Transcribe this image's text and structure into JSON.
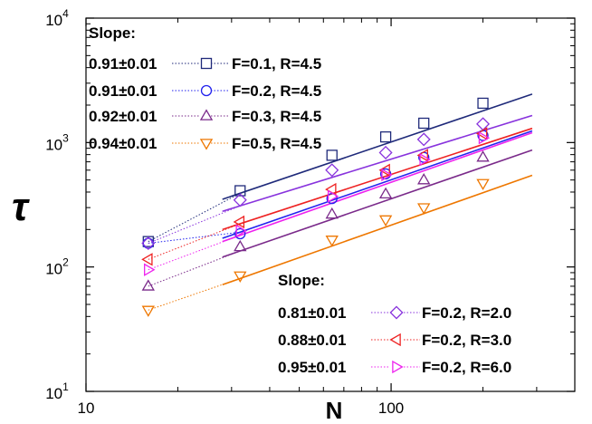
{
  "chart_data": {
    "type": "scatter",
    "title": "",
    "xlabel": "N",
    "ylabel": "τ",
    "xscale": "log",
    "yscale": "log",
    "xlim": [
      10,
      400
    ],
    "ylim": [
      10,
      10000
    ],
    "x_ticks": [
      {
        "value": 10,
        "label": "10"
      },
      {
        "value": 100,
        "label": "100"
      }
    ],
    "y_ticks": [
      {
        "value": 10,
        "base": "10",
        "exp": "1"
      },
      {
        "value": 100,
        "base": "10",
        "exp": "2"
      },
      {
        "value": 1000,
        "base": "10",
        "exp": "3"
      },
      {
        "value": 10000,
        "base": "10",
        "exp": "4"
      }
    ],
    "legend_groups": [
      {
        "title": "Slope:",
        "placement": "top-left"
      },
      {
        "title": "Slope:",
        "placement": "bottom-right"
      }
    ],
    "series": [
      {
        "name": "F=0.1, R=4.5",
        "slope": "0.91±0.01",
        "group": 0,
        "marker": "square",
        "color": "#1f2a7a",
        "x": [
          16,
          32,
          64,
          96,
          128,
          200
        ],
        "y": [
          160,
          410,
          790,
          1110,
          1430,
          2070
        ],
        "fit": [
          [
            28,
            350
          ],
          [
            290,
            2450
          ]
        ]
      },
      {
        "name": "F=0.2, R=4.5",
        "slope": "0.91±0.01",
        "group": 0,
        "marker": "circle",
        "color": "#2222ee",
        "x": [
          16,
          32,
          64,
          96,
          128,
          200
        ],
        "y": [
          155,
          185,
          355,
          560,
          760,
          1140
        ],
        "fit": [
          [
            28,
            170
          ],
          [
            290,
            1240
          ]
        ]
      },
      {
        "name": "F=0.3, R=4.5",
        "slope": "0.92±0.01",
        "group": 0,
        "marker": "triangle-up",
        "color": "#7a2a8a",
        "x": [
          16,
          32,
          64,
          96,
          128,
          200
        ],
        "y": [
          70,
          145,
          265,
          385,
          500,
          760
        ],
        "fit": [
          [
            28,
            120
          ],
          [
            290,
            870
          ]
        ]
      },
      {
        "name": "F=0.5, R=4.5",
        "slope": "0.94±0.01",
        "group": 0,
        "marker": "triangle-down",
        "color": "#ee7700",
        "x": [
          16,
          32,
          64,
          96,
          128,
          200
        ],
        "y": [
          45,
          85,
          165,
          240,
          300,
          470
        ],
        "fit": [
          [
            28,
            72
          ],
          [
            290,
            545
          ]
        ]
      },
      {
        "name": "F=0.2, R=2.0",
        "slope": "0.81±0.01",
        "group": 1,
        "marker": "diamond",
        "color": "#8833dd",
        "x": [
          16,
          32,
          64,
          96,
          128,
          200
        ],
        "y": [
          155,
          345,
          600,
          830,
          1060,
          1410
        ],
        "fit": [
          [
            28,
            280
          ],
          [
            290,
            1650
          ]
        ]
      },
      {
        "name": "F=0.2, R=3.0",
        "slope": "0.88±0.01",
        "group": 1,
        "marker": "triangle-left",
        "color": "#ee2222",
        "x": [
          16,
          32,
          64,
          96,
          128,
          200
        ],
        "y": [
          115,
          230,
          420,
          600,
          790,
          1180
        ],
        "fit": [
          [
            28,
            200
          ],
          [
            290,
            1300
          ]
        ]
      },
      {
        "name": "F=0.2, R=6.0",
        "slope": "0.95±0.01",
        "group": 1,
        "marker": "triangle-right",
        "color": "#ee22ee",
        "x": [
          16,
          32,
          64,
          96,
          128,
          200
        ],
        "y": [
          95,
          195,
          370,
          550,
          730,
          1090
        ],
        "fit": [
          [
            28,
            160
          ],
          [
            290,
            1200
          ]
        ]
      }
    ]
  }
}
